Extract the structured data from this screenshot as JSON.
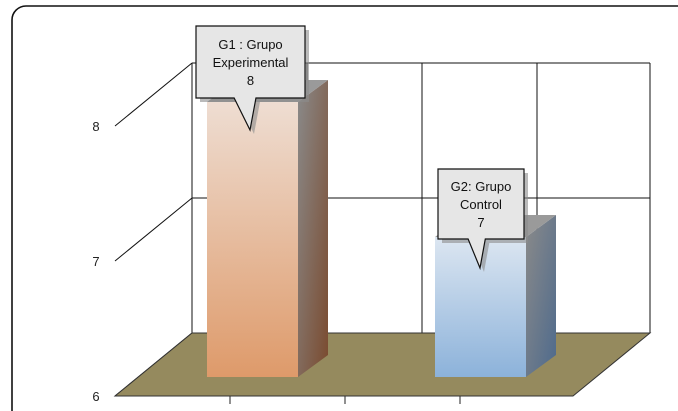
{
  "chart_data": {
    "type": "bar",
    "title": "",
    "xlabel": "",
    "ylabel": "",
    "categories": [
      "G1 : Grupo Experimental",
      "G2: Grupo Control"
    ],
    "values": [
      8,
      7
    ],
    "ylim": [
      6,
      8
    ],
    "yticks": [
      "6",
      "7",
      "8"
    ],
    "grid": true,
    "legend": "none",
    "three_d": true,
    "data_labels": [
      [
        "G1 : Grupo",
        "Experimental",
        "8"
      ],
      [
        "G2: Grupo",
        "Control",
        "7"
      ]
    ],
    "colors": {
      "bar1_top": "#EEDDD2",
      "bar1_bottom": "#DE9A6A",
      "bar1_side": "#7A4A2E",
      "bar2_top": "#DCE6F1",
      "bar2_bottom": "#8CB2DA",
      "bar2_side": "#4E6A8C",
      "floor": "#958A5E",
      "callout_fill": "#E6E6E6"
    }
  }
}
